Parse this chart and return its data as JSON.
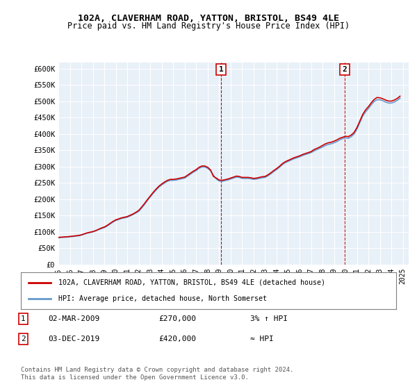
{
  "title1": "102A, CLAVERHAM ROAD, YATTON, BRISTOL, BS49 4LE",
  "title2": "Price paid vs. HM Land Registry's House Price Index (HPI)",
  "ylabel_ticks": [
    "£0",
    "£50K",
    "£100K",
    "£150K",
    "£200K",
    "£250K",
    "£300K",
    "£350K",
    "£400K",
    "£450K",
    "£500K",
    "£550K",
    "£600K"
  ],
  "ytick_values": [
    0,
    50000,
    100000,
    150000,
    200000,
    250000,
    300000,
    350000,
    400000,
    450000,
    500000,
    550000,
    600000
  ],
  "xlim_start": 1995.0,
  "xlim_end": 2025.5,
  "ylim_min": 0,
  "ylim_max": 620000,
  "legend_label1": "102A, CLAVERHAM ROAD, YATTON, BRISTOL, BS49 4LE (detached house)",
  "legend_label2": "HPI: Average price, detached house, North Somerset",
  "line1_color": "#cc0000",
  "line2_color": "#6699cc",
  "marker1_date": 2009.17,
  "marker1_value": 270000,
  "marker1_label": "1",
  "marker2_date": 2019.92,
  "marker2_value": 420000,
  "marker2_label": "2",
  "annotation1": "1    02-MAR-2009         £270,000          3% ↑ HPI",
  "annotation2": "2    03-DEC-2019         £420,000          ≈ HPI",
  "footer": "Contains HM Land Registry data © Crown copyright and database right 2024.\nThis data is licensed under the Open Government Licence v3.0.",
  "bg_color": "#e8f0f8",
  "plot_bg_color": "#e8f0f8",
  "hpi_data_x": [
    1995.0,
    1995.25,
    1995.5,
    1995.75,
    1996.0,
    1996.25,
    1996.5,
    1996.75,
    1997.0,
    1997.25,
    1997.5,
    1997.75,
    1998.0,
    1998.25,
    1998.5,
    1998.75,
    1999.0,
    1999.25,
    1999.5,
    1999.75,
    2000.0,
    2000.25,
    2000.5,
    2000.75,
    2001.0,
    2001.25,
    2001.5,
    2001.75,
    2002.0,
    2002.25,
    2002.5,
    2002.75,
    2003.0,
    2003.25,
    2003.5,
    2003.75,
    2004.0,
    2004.25,
    2004.5,
    2004.75,
    2005.0,
    2005.25,
    2005.5,
    2005.75,
    2006.0,
    2006.25,
    2006.5,
    2006.75,
    2007.0,
    2007.25,
    2007.5,
    2007.75,
    2008.0,
    2008.25,
    2008.5,
    2008.75,
    2009.0,
    2009.25,
    2009.5,
    2009.75,
    2010.0,
    2010.25,
    2010.5,
    2010.75,
    2011.0,
    2011.25,
    2011.5,
    2011.75,
    2012.0,
    2012.25,
    2012.5,
    2012.75,
    2013.0,
    2013.25,
    2013.5,
    2013.75,
    2014.0,
    2014.25,
    2014.5,
    2014.75,
    2015.0,
    2015.25,
    2015.5,
    2015.75,
    2016.0,
    2016.25,
    2016.5,
    2016.75,
    2017.0,
    2017.25,
    2017.5,
    2017.75,
    2018.0,
    2018.25,
    2018.5,
    2018.75,
    2019.0,
    2019.25,
    2019.5,
    2019.75,
    2020.0,
    2020.25,
    2020.5,
    2020.75,
    2021.0,
    2021.25,
    2021.5,
    2021.75,
    2022.0,
    2022.25,
    2022.5,
    2022.75,
    2023.0,
    2023.25,
    2023.5,
    2023.75,
    2024.0,
    2024.25,
    2024.5,
    2024.75
  ],
  "hpi_data_y": [
    82000,
    83000,
    83500,
    84000,
    85000,
    86000,
    87000,
    88000,
    90000,
    93000,
    96000,
    98000,
    100000,
    103000,
    107000,
    110000,
    113000,
    118000,
    124000,
    130000,
    135000,
    138000,
    141000,
    143000,
    145000,
    149000,
    153000,
    158000,
    163000,
    173000,
    184000,
    196000,
    207000,
    218000,
    228000,
    237000,
    244000,
    250000,
    255000,
    258000,
    258000,
    259000,
    261000,
    263000,
    265000,
    271000,
    277000,
    283000,
    288000,
    295000,
    299000,
    299000,
    295000,
    287000,
    274000,
    262000,
    256000,
    255000,
    257000,
    259000,
    262000,
    265000,
    268000,
    267000,
    264000,
    264000,
    264000,
    263000,
    261000,
    262000,
    264000,
    266000,
    267000,
    272000,
    278000,
    285000,
    291000,
    298000,
    306000,
    312000,
    316000,
    320000,
    324000,
    327000,
    330000,
    334000,
    337000,
    340000,
    343000,
    348000,
    352000,
    356000,
    360000,
    365000,
    368000,
    370000,
    373000,
    377000,
    382000,
    386000,
    388000,
    387000,
    392000,
    400000,
    415000,
    435000,
    455000,
    468000,
    478000,
    490000,
    500000,
    505000,
    505000,
    502000,
    498000,
    495000,
    495000,
    498000,
    503000,
    510000
  ],
  "price_data_x": [
    1995.0,
    1995.25,
    1995.5,
    1995.75,
    1996.0,
    1996.25,
    1996.5,
    1996.75,
    1997.0,
    1997.25,
    1997.5,
    1997.75,
    1998.0,
    1998.25,
    1998.5,
    1998.75,
    1999.0,
    1999.25,
    1999.5,
    1999.75,
    2000.0,
    2000.25,
    2000.5,
    2000.75,
    2001.0,
    2001.25,
    2001.5,
    2001.75,
    2002.0,
    2002.25,
    2002.5,
    2002.75,
    2003.0,
    2003.25,
    2003.5,
    2003.75,
    2004.0,
    2004.25,
    2004.5,
    2004.75,
    2005.0,
    2005.25,
    2005.5,
    2005.75,
    2006.0,
    2006.25,
    2006.5,
    2006.75,
    2007.0,
    2007.25,
    2007.5,
    2007.75,
    2008.0,
    2008.25,
    2008.5,
    2008.75,
    2009.0,
    2009.25,
    2009.5,
    2009.75,
    2010.0,
    2010.25,
    2010.5,
    2010.75,
    2011.0,
    2011.25,
    2011.5,
    2011.75,
    2012.0,
    2012.25,
    2012.5,
    2012.75,
    2013.0,
    2013.25,
    2013.5,
    2013.75,
    2014.0,
    2014.25,
    2014.5,
    2014.75,
    2015.0,
    2015.25,
    2015.5,
    2015.75,
    2016.0,
    2016.25,
    2016.5,
    2016.75,
    2017.0,
    2017.25,
    2017.5,
    2017.75,
    2018.0,
    2018.25,
    2018.5,
    2018.75,
    2019.0,
    2019.25,
    2019.5,
    2019.75,
    2020.0,
    2020.25,
    2020.5,
    2020.75,
    2021.0,
    2021.25,
    2021.5,
    2021.75,
    2022.0,
    2022.25,
    2022.5,
    2022.75,
    2023.0,
    2023.25,
    2023.5,
    2023.75,
    2024.0,
    2024.25,
    2024.5,
    2024.75
  ],
  "price_data_y": [
    83000,
    84000,
    84500,
    85000,
    86000,
    87000,
    88000,
    89000,
    91000,
    94000,
    97000,
    99000,
    101000,
    104000,
    108000,
    112000,
    115000,
    120000,
    126000,
    132000,
    137000,
    140000,
    143000,
    145000,
    147000,
    151000,
    155000,
    160000,
    166000,
    176000,
    187000,
    199000,
    210000,
    221000,
    231000,
    240000,
    247000,
    253000,
    258000,
    261000,
    261000,
    262000,
    264000,
    266000,
    268000,
    274000,
    280000,
    286000,
    291000,
    298000,
    302000,
    302000,
    298000,
    290000,
    270000,
    265000,
    259000,
    258000,
    260000,
    262000,
    265000,
    268000,
    271000,
    270000,
    267000,
    267000,
    267000,
    266000,
    264000,
    265000,
    267000,
    269000,
    270000,
    275000,
    281000,
    288000,
    294000,
    301000,
    309000,
    315000,
    319000,
    323000,
    327000,
    330000,
    333000,
    337000,
    340000,
    343000,
    346000,
    352000,
    356000,
    360000,
    365000,
    370000,
    373000,
    375000,
    378000,
    382000,
    387000,
    390000,
    393000,
    392000,
    397000,
    405000,
    420000,
    440000,
    460000,
    474000,
    484000,
    496000,
    506000,
    512000,
    511000,
    508000,
    504000,
    501000,
    501000,
    504000,
    509000,
    516000
  ]
}
